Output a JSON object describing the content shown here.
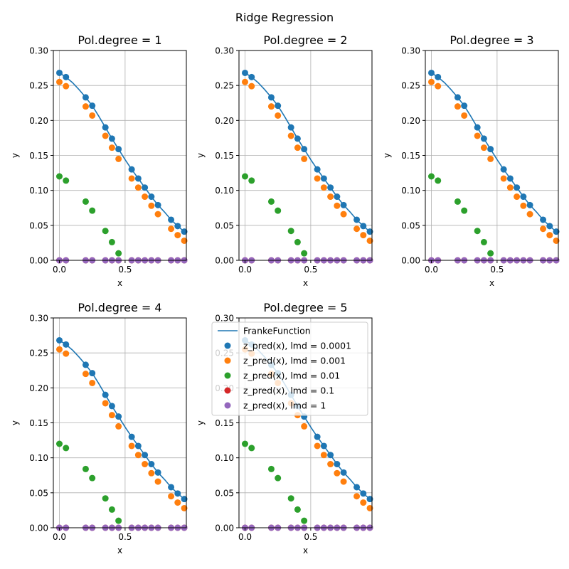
{
  "figure": {
    "suptitle": "Ridge Regression"
  },
  "colors": {
    "franke": "#1f77b4",
    "lmd_0001": "#1f77b4",
    "lmd_001": "#ff7f0e",
    "lmd_01": "#2ca02c",
    "lmd_1": "#d62728",
    "lmd_10": "#9467bd",
    "grid": "#b0b0b0"
  },
  "legend": {
    "placement": "upper-left of panel 5",
    "entries": [
      "FrankeFunction",
      "z_pred(x), lmd = 0.0001",
      "z_pred(x), lmd = 0.001",
      "z_pred(x), lmd = 0.01",
      "z_pred(x), lmd = 0.1",
      "z_pred(x), lmd = 1"
    ]
  },
  "chart_data": [
    {
      "type": "scatter",
      "title": "Pol.degree = 1",
      "xlabel": "x",
      "ylabel": "y",
      "xlim": [
        -0.046,
        0.966
      ],
      "ylim": [
        0,
        0.3
      ],
      "xticks": [
        "0.0",
        "0.5"
      ],
      "yticks": [
        "0.00",
        "0.05",
        "0.10",
        "0.15",
        "0.20",
        "0.25",
        "0.30"
      ],
      "grid": true,
      "x": [
        0.0,
        0.05,
        0.2,
        0.25,
        0.35,
        0.4,
        0.45,
        0.55,
        0.6,
        0.65,
        0.7,
        0.75,
        0.85,
        0.9,
        0.95
      ],
      "line": {
        "name": "FrankeFunction",
        "x": [
          0.0,
          0.05,
          0.1,
          0.15,
          0.2,
          0.25,
          0.3,
          0.35,
          0.4,
          0.45,
          0.5,
          0.55,
          0.6,
          0.65,
          0.7,
          0.75,
          0.8,
          0.85,
          0.9,
          0.95
        ],
        "y": [
          0.268,
          0.262,
          0.254,
          0.244,
          0.233,
          0.221,
          0.206,
          0.19,
          0.174,
          0.159,
          0.144,
          0.13,
          0.117,
          0.104,
          0.091,
          0.079,
          0.069,
          0.058,
          0.049,
          0.041
        ]
      },
      "series": [
        {
          "name": "z_pred(x), lmd = 0.0001",
          "values": [
            0.268,
            0.262,
            0.233,
            0.221,
            0.19,
            0.174,
            0.159,
            0.13,
            0.117,
            0.104,
            0.091,
            0.079,
            0.058,
            0.049,
            0.041
          ]
        },
        {
          "name": "z_pred(x), lmd = 0.001",
          "values": [
            0.255,
            0.249,
            0.22,
            0.207,
            0.178,
            0.161,
            0.145,
            0.117,
            0.104,
            0.091,
            0.078,
            0.066,
            0.045,
            0.036,
            0.028
          ]
        },
        {
          "name": "z_pred(x), lmd = 0.01",
          "values": [
            0.12,
            0.114,
            0.084,
            0.071,
            0.042,
            0.026,
            0.01,
            null,
            null,
            null,
            null,
            null,
            null,
            null,
            null
          ]
        },
        {
          "name": "z_pred(x), lmd = 0.1",
          "values": [
            0,
            0,
            0,
            0,
            0,
            0,
            0,
            0,
            0,
            0,
            0,
            0,
            0,
            0,
            0
          ]
        },
        {
          "name": "z_pred(x), lmd = 1",
          "values": [
            0,
            0,
            0,
            0,
            0,
            0,
            0,
            0,
            0,
            0,
            0,
            0,
            0,
            0,
            0
          ]
        }
      ]
    },
    {
      "type": "scatter",
      "title": "Pol.degree = 2",
      "xlabel": "x",
      "ylabel": "y",
      "xlim": [
        -0.046,
        0.966
      ],
      "ylim": [
        0,
        0.3
      ],
      "xticks": [
        "0.0",
        "0.5"
      ],
      "yticks": [
        "0.00",
        "0.05",
        "0.10",
        "0.15",
        "0.20",
        "0.25",
        "0.30"
      ],
      "grid": true,
      "x": [
        0.0,
        0.05,
        0.2,
        0.25,
        0.35,
        0.4,
        0.45,
        0.55,
        0.6,
        0.65,
        0.7,
        0.75,
        0.85,
        0.9,
        0.95
      ],
      "line": {
        "name": "FrankeFunction",
        "x": [
          0.0,
          0.05,
          0.1,
          0.15,
          0.2,
          0.25,
          0.3,
          0.35,
          0.4,
          0.45,
          0.5,
          0.55,
          0.6,
          0.65,
          0.7,
          0.75,
          0.8,
          0.85,
          0.9,
          0.95
        ],
        "y": [
          0.268,
          0.262,
          0.254,
          0.244,
          0.233,
          0.221,
          0.206,
          0.19,
          0.174,
          0.159,
          0.144,
          0.13,
          0.117,
          0.104,
          0.091,
          0.079,
          0.069,
          0.058,
          0.049,
          0.041
        ]
      },
      "series": [
        {
          "name": "z_pred(x), lmd = 0.0001",
          "values": [
            0.268,
            0.262,
            0.233,
            0.221,
            0.19,
            0.174,
            0.159,
            0.13,
            0.117,
            0.104,
            0.091,
            0.079,
            0.058,
            0.049,
            0.041
          ]
        },
        {
          "name": "z_pred(x), lmd = 0.001",
          "values": [
            0.255,
            0.249,
            0.22,
            0.207,
            0.178,
            0.161,
            0.145,
            0.117,
            0.104,
            0.091,
            0.078,
            0.066,
            0.045,
            0.036,
            0.028
          ]
        },
        {
          "name": "z_pred(x), lmd = 0.01",
          "values": [
            0.12,
            0.114,
            0.084,
            0.071,
            0.042,
            0.026,
            0.01,
            null,
            null,
            null,
            null,
            null,
            null,
            null,
            null
          ]
        },
        {
          "name": "z_pred(x), lmd = 0.1",
          "values": [
            0,
            0,
            0,
            0,
            0,
            0,
            0,
            0,
            0,
            0,
            0,
            0,
            0,
            0,
            0
          ]
        },
        {
          "name": "z_pred(x), lmd = 1",
          "values": [
            0,
            0,
            0,
            0,
            0,
            0,
            0,
            0,
            0,
            0,
            0,
            0,
            0,
            0,
            0
          ]
        }
      ]
    },
    {
      "type": "scatter",
      "title": "Pol.degree = 3",
      "xlabel": "x",
      "ylabel": "y",
      "xlim": [
        -0.046,
        0.966
      ],
      "ylim": [
        0,
        0.3
      ],
      "xticks": [
        "0.0",
        "0.5"
      ],
      "yticks": [
        "0.00",
        "0.05",
        "0.10",
        "0.15",
        "0.20",
        "0.25",
        "0.30"
      ],
      "grid": true,
      "x": [
        0.0,
        0.05,
        0.2,
        0.25,
        0.35,
        0.4,
        0.45,
        0.55,
        0.6,
        0.65,
        0.7,
        0.75,
        0.85,
        0.9,
        0.95
      ],
      "line": {
        "name": "FrankeFunction",
        "x": [
          0.0,
          0.05,
          0.1,
          0.15,
          0.2,
          0.25,
          0.3,
          0.35,
          0.4,
          0.45,
          0.5,
          0.55,
          0.6,
          0.65,
          0.7,
          0.75,
          0.8,
          0.85,
          0.9,
          0.95
        ],
        "y": [
          0.268,
          0.262,
          0.254,
          0.244,
          0.233,
          0.221,
          0.206,
          0.19,
          0.174,
          0.159,
          0.144,
          0.13,
          0.117,
          0.104,
          0.091,
          0.079,
          0.069,
          0.058,
          0.049,
          0.041
        ]
      },
      "series": [
        {
          "name": "z_pred(x), lmd = 0.0001",
          "values": [
            0.268,
            0.262,
            0.233,
            0.221,
            0.19,
            0.174,
            0.159,
            0.13,
            0.117,
            0.104,
            0.091,
            0.079,
            0.058,
            0.049,
            0.041
          ]
        },
        {
          "name": "z_pred(x), lmd = 0.001",
          "values": [
            0.255,
            0.249,
            0.22,
            0.207,
            0.178,
            0.161,
            0.145,
            0.117,
            0.104,
            0.091,
            0.078,
            0.066,
            0.045,
            0.036,
            0.028
          ]
        },
        {
          "name": "z_pred(x), lmd = 0.01",
          "values": [
            0.12,
            0.114,
            0.084,
            0.071,
            0.042,
            0.026,
            0.01,
            null,
            null,
            null,
            null,
            null,
            null,
            null,
            null
          ]
        },
        {
          "name": "z_pred(x), lmd = 0.1",
          "values": [
            0,
            0,
            0,
            0,
            0,
            0,
            0,
            0,
            0,
            0,
            0,
            0,
            0,
            0,
            0
          ]
        },
        {
          "name": "z_pred(x), lmd = 1",
          "values": [
            0,
            0,
            0,
            0,
            0,
            0,
            0,
            0,
            0,
            0,
            0,
            0,
            0,
            0,
            0
          ]
        }
      ]
    },
    {
      "type": "scatter",
      "title": "Pol.degree = 4",
      "xlabel": "x",
      "ylabel": "y",
      "xlim": [
        -0.046,
        0.966
      ],
      "ylim": [
        0,
        0.3
      ],
      "xticks": [
        "0.0",
        "0.5"
      ],
      "yticks": [
        "0.00",
        "0.05",
        "0.10",
        "0.15",
        "0.20",
        "0.25",
        "0.30"
      ],
      "grid": true,
      "x": [
        0.0,
        0.05,
        0.2,
        0.25,
        0.35,
        0.4,
        0.45,
        0.55,
        0.6,
        0.65,
        0.7,
        0.75,
        0.85,
        0.9,
        0.95
      ],
      "line": {
        "name": "FrankeFunction",
        "x": [
          0.0,
          0.05,
          0.1,
          0.15,
          0.2,
          0.25,
          0.3,
          0.35,
          0.4,
          0.45,
          0.5,
          0.55,
          0.6,
          0.65,
          0.7,
          0.75,
          0.8,
          0.85,
          0.9,
          0.95
        ],
        "y": [
          0.268,
          0.262,
          0.254,
          0.244,
          0.233,
          0.221,
          0.206,
          0.19,
          0.174,
          0.159,
          0.144,
          0.13,
          0.117,
          0.104,
          0.091,
          0.079,
          0.069,
          0.058,
          0.049,
          0.041
        ]
      },
      "series": [
        {
          "name": "z_pred(x), lmd = 0.0001",
          "values": [
            0.268,
            0.262,
            0.233,
            0.221,
            0.19,
            0.174,
            0.159,
            0.13,
            0.117,
            0.104,
            0.091,
            0.079,
            0.058,
            0.049,
            0.041
          ]
        },
        {
          "name": "z_pred(x), lmd = 0.001",
          "values": [
            0.255,
            0.249,
            0.22,
            0.207,
            0.178,
            0.161,
            0.145,
            0.117,
            0.104,
            0.091,
            0.078,
            0.066,
            0.045,
            0.036,
            0.028
          ]
        },
        {
          "name": "z_pred(x), lmd = 0.01",
          "values": [
            0.12,
            0.114,
            0.084,
            0.071,
            0.042,
            0.026,
            0.01,
            null,
            null,
            null,
            null,
            null,
            null,
            null,
            null
          ]
        },
        {
          "name": "z_pred(x), lmd = 0.1",
          "values": [
            0,
            0,
            0,
            0,
            0,
            0,
            0,
            0,
            0,
            0,
            0,
            0,
            0,
            0,
            0
          ]
        },
        {
          "name": "z_pred(x), lmd = 1",
          "values": [
            0,
            0,
            0,
            0,
            0,
            0,
            0,
            0,
            0,
            0,
            0,
            0,
            0,
            0,
            0
          ]
        }
      ]
    },
    {
      "type": "scatter",
      "title": "Pol.degree = 5",
      "xlabel": "x",
      "ylabel": "y",
      "xlim": [
        -0.046,
        0.966
      ],
      "ylim": [
        0,
        0.3
      ],
      "xticks": [
        "0.0",
        "0.5"
      ],
      "yticks": [
        "0.00",
        "0.05",
        "0.10",
        "0.15",
        "0.20",
        "0.25",
        "0.30"
      ],
      "grid": true,
      "legend": true,
      "x": [
        0.0,
        0.05,
        0.2,
        0.25,
        0.35,
        0.4,
        0.45,
        0.55,
        0.6,
        0.65,
        0.7,
        0.75,
        0.85,
        0.9,
        0.95
      ],
      "line": {
        "name": "FrankeFunction",
        "x": [
          0.0,
          0.05,
          0.1,
          0.15,
          0.2,
          0.25,
          0.3,
          0.35,
          0.4,
          0.45,
          0.5,
          0.55,
          0.6,
          0.65,
          0.7,
          0.75,
          0.8,
          0.85,
          0.9,
          0.95
        ],
        "y": [
          0.268,
          0.262,
          0.254,
          0.244,
          0.233,
          0.221,
          0.206,
          0.19,
          0.174,
          0.159,
          0.144,
          0.13,
          0.117,
          0.104,
          0.091,
          0.079,
          0.069,
          0.058,
          0.049,
          0.041
        ]
      },
      "series": [
        {
          "name": "z_pred(x), lmd = 0.0001",
          "values": [
            0.268,
            0.262,
            0.233,
            0.221,
            0.19,
            0.174,
            0.159,
            0.13,
            0.117,
            0.104,
            0.091,
            0.079,
            0.058,
            0.049,
            0.041
          ]
        },
        {
          "name": "z_pred(x), lmd = 0.001",
          "values": [
            0.255,
            0.249,
            0.22,
            0.207,
            0.178,
            0.161,
            0.145,
            0.117,
            0.104,
            0.091,
            0.078,
            0.066,
            0.045,
            0.036,
            0.028
          ]
        },
        {
          "name": "z_pred(x), lmd = 0.01",
          "values": [
            0.12,
            0.114,
            0.084,
            0.071,
            0.042,
            0.026,
            0.01,
            null,
            null,
            null,
            null,
            null,
            null,
            null,
            null
          ]
        },
        {
          "name": "z_pred(x), lmd = 0.1",
          "values": [
            0,
            0,
            0,
            0,
            0,
            0,
            0,
            0,
            0,
            0,
            0,
            0,
            0,
            0,
            0
          ]
        },
        {
          "name": "z_pred(x), lmd = 1",
          "values": [
            0,
            0,
            0,
            0,
            0,
            0,
            0,
            0,
            0,
            0,
            0,
            0,
            0,
            0,
            0
          ]
        }
      ]
    }
  ]
}
